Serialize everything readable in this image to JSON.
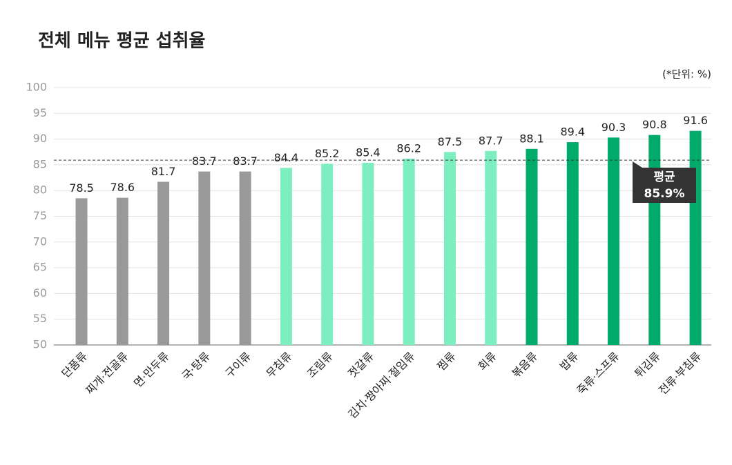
{
  "chart_data": {
    "type": "bar",
    "title": "전체 메뉴 평균 섭취율",
    "unit_label": "(*단위: %)",
    "categories": [
      "단품류",
      "찌개·전골류",
      "면·만두류",
      "국·탕류",
      "구이류",
      "무침류",
      "조림류",
      "젓갈류",
      "김치·짱아찌·절임류",
      "찜류",
      "회류",
      "볶음류",
      "밥류",
      "죽류·스프류",
      "튀김류",
      "전류·부침류"
    ],
    "values": [
      78.5,
      78.6,
      81.7,
      83.7,
      83.7,
      84.4,
      85.2,
      85.4,
      86.2,
      87.5,
      87.7,
      88.1,
      89.4,
      90.3,
      90.8,
      91.6
    ],
    "colors": [
      "#999999",
      "#999999",
      "#999999",
      "#999999",
      "#999999",
      "#7deebf",
      "#7deebf",
      "#7deebf",
      "#7deebf",
      "#7deebf",
      "#7deebf",
      "#00ab6b",
      "#00ab6b",
      "#00ab6b",
      "#00ab6b",
      "#00ab6b"
    ],
    "ylim": [
      50,
      100
    ],
    "yticks": [
      50,
      55,
      60,
      65,
      70,
      75,
      80,
      85,
      90,
      95,
      100
    ],
    "grid": true,
    "average": {
      "label": "평균",
      "value": 85.9,
      "value_label": "85.9%"
    }
  }
}
